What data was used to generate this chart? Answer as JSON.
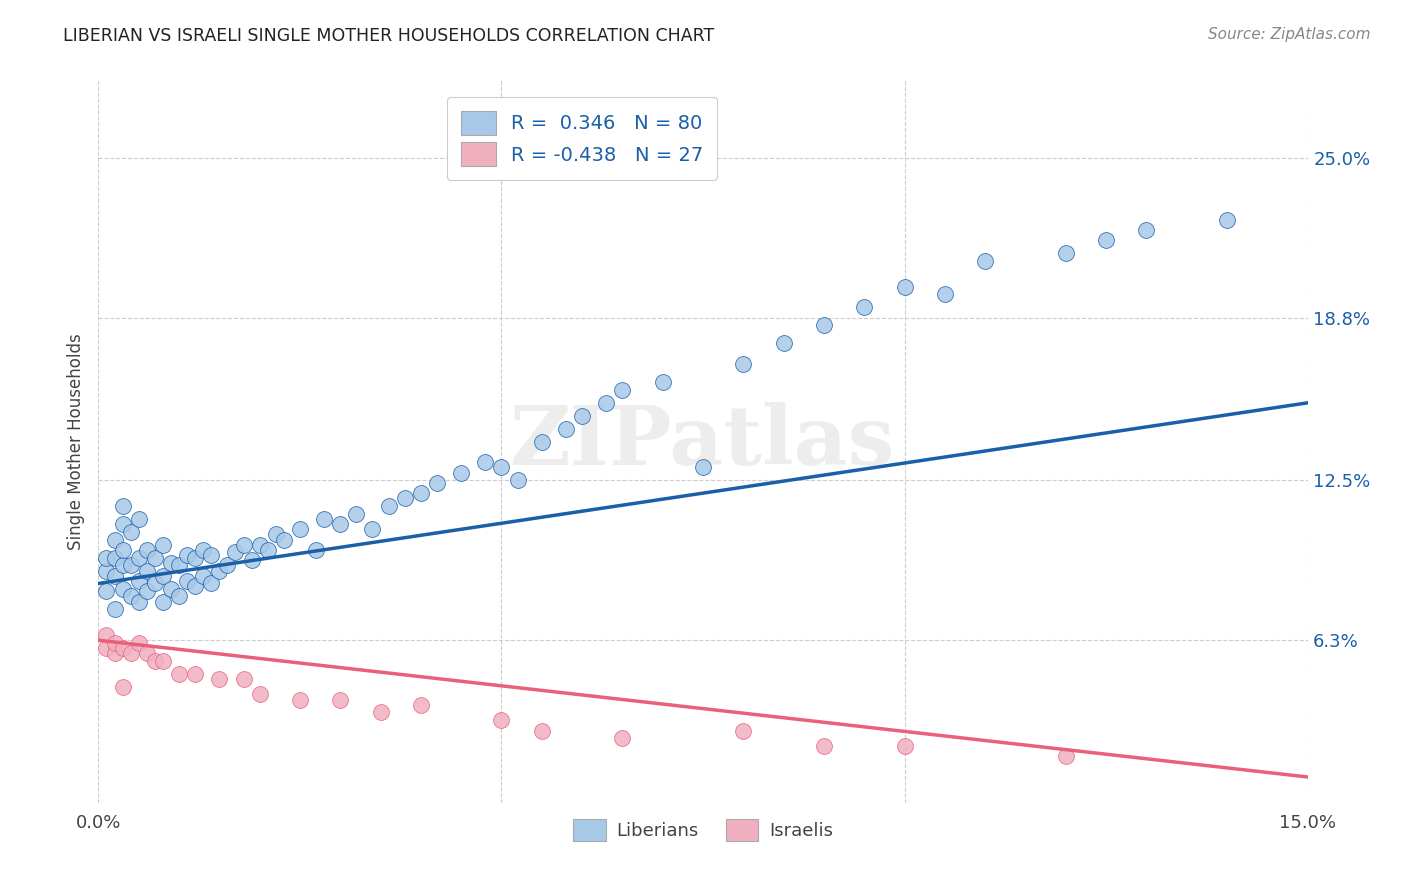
{
  "title": "LIBERIAN VS ISRAELI SINGLE MOTHER HOUSEHOLDS CORRELATION CHART",
  "source": "Source: ZipAtlas.com",
  "ylabel": "Single Mother Households",
  "xlim": [
    0.0,
    0.15
  ],
  "ylim": [
    0.0,
    0.28
  ],
  "ytick_labels_right": [
    "25.0%",
    "18.8%",
    "12.5%",
    "6.3%"
  ],
  "ytick_values_right": [
    0.25,
    0.188,
    0.125,
    0.063
  ],
  "color_liberian": "#a8c8e8",
  "color_israeli": "#f0b0c0",
  "line_color_liberian": "#1a5fa8",
  "line_color_israeli": "#e8607a",
  "watermark": "ZIPatlas",
  "liberian_x": [
    0.001,
    0.001,
    0.001,
    0.002,
    0.002,
    0.002,
    0.002,
    0.003,
    0.003,
    0.003,
    0.003,
    0.003,
    0.004,
    0.004,
    0.004,
    0.005,
    0.005,
    0.005,
    0.005,
    0.006,
    0.006,
    0.006,
    0.007,
    0.007,
    0.008,
    0.008,
    0.008,
    0.009,
    0.009,
    0.01,
    0.01,
    0.011,
    0.011,
    0.012,
    0.012,
    0.013,
    0.013,
    0.014,
    0.014,
    0.015,
    0.016,
    0.017,
    0.018,
    0.019,
    0.02,
    0.021,
    0.022,
    0.023,
    0.025,
    0.027,
    0.028,
    0.03,
    0.032,
    0.034,
    0.036,
    0.038,
    0.04,
    0.042,
    0.045,
    0.048,
    0.05,
    0.052,
    0.055,
    0.058,
    0.06,
    0.063,
    0.065,
    0.07,
    0.075,
    0.08,
    0.085,
    0.09,
    0.095,
    0.1,
    0.105,
    0.11,
    0.12,
    0.125,
    0.13,
    0.14
  ],
  "liberian_y": [
    0.09,
    0.082,
    0.095,
    0.075,
    0.088,
    0.095,
    0.102,
    0.083,
    0.092,
    0.098,
    0.108,
    0.115,
    0.08,
    0.092,
    0.105,
    0.078,
    0.086,
    0.095,
    0.11,
    0.082,
    0.09,
    0.098,
    0.085,
    0.095,
    0.078,
    0.088,
    0.1,
    0.083,
    0.093,
    0.08,
    0.092,
    0.086,
    0.096,
    0.084,
    0.095,
    0.088,
    0.098,
    0.085,
    0.096,
    0.09,
    0.092,
    0.097,
    0.1,
    0.094,
    0.1,
    0.098,
    0.104,
    0.102,
    0.106,
    0.098,
    0.11,
    0.108,
    0.112,
    0.106,
    0.115,
    0.118,
    0.12,
    0.124,
    0.128,
    0.132,
    0.13,
    0.125,
    0.14,
    0.145,
    0.15,
    0.155,
    0.16,
    0.163,
    0.13,
    0.17,
    0.178,
    0.185,
    0.192,
    0.2,
    0.197,
    0.21,
    0.213,
    0.218,
    0.222,
    0.226
  ],
  "israeli_x": [
    0.001,
    0.001,
    0.002,
    0.002,
    0.003,
    0.003,
    0.004,
    0.005,
    0.006,
    0.007,
    0.008,
    0.01,
    0.012,
    0.015,
    0.018,
    0.02,
    0.025,
    0.03,
    0.035,
    0.04,
    0.05,
    0.055,
    0.065,
    0.08,
    0.09,
    0.1,
    0.12
  ],
  "israeli_y": [
    0.065,
    0.06,
    0.058,
    0.062,
    0.045,
    0.06,
    0.058,
    0.062,
    0.058,
    0.055,
    0.055,
    0.05,
    0.05,
    0.048,
    0.048,
    0.042,
    0.04,
    0.04,
    0.035,
    0.038,
    0.032,
    0.028,
    0.025,
    0.028,
    0.022,
    0.022,
    0.018
  ],
  "liberian_line_x": [
    0.0,
    0.15
  ],
  "liberian_line_y": [
    0.085,
    0.155
  ],
  "israeli_line_x": [
    0.0,
    0.15
  ],
  "israeli_line_y": [
    0.063,
    0.01
  ]
}
